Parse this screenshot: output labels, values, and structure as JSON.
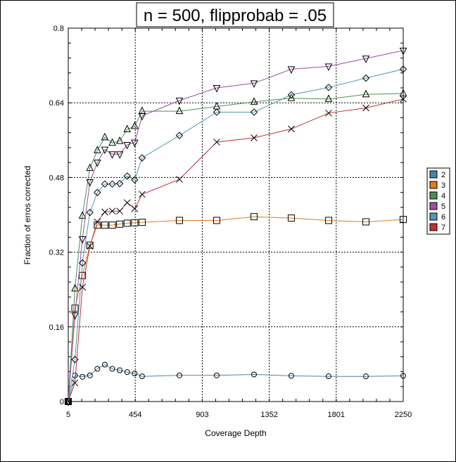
{
  "chart_data": {
    "type": "line",
    "title": "n = 500, flipprobab = .05",
    "xlabel": "Coverage Depth",
    "ylabel": "Fraction of erros corrected",
    "xlim": [
      5,
      2250
    ],
    "ylim": [
      0,
      0.8
    ],
    "x_ticks": [
      5,
      454,
      903,
      1352,
      1801,
      2250
    ],
    "x_tick_labels": [
      "5",
      "454",
      "903",
      "1352",
      "1801",
      "2250"
    ],
    "y_ticks": [
      0,
      0.16,
      0.32,
      0.48,
      0.64,
      0.8
    ],
    "y_tick_labels": [
      "0",
      "0.16",
      "0.32",
      "0.48",
      "0.64",
      "0.8"
    ],
    "grid": true,
    "legend_position": "right",
    "series": [
      {
        "name": "2",
        "color": "#4e84a8",
        "marker": "circle",
        "x": [
          5,
          50,
          100,
          150,
          200,
          250,
          300,
          350,
          400,
          450,
          500,
          750,
          1000,
          1250,
          1500,
          1750,
          2000,
          2250
        ],
        "y": [
          0,
          0.056,
          0.053,
          0.056,
          0.07,
          0.079,
          0.07,
          0.067,
          0.063,
          0.06,
          0.054,
          0.056,
          0.056,
          0.058,
          0.055,
          0.054,
          0.054,
          0.055
        ]
      },
      {
        "name": "3",
        "color": "#e07b20",
        "marker": "square",
        "x": [
          5,
          50,
          100,
          150,
          200,
          250,
          300,
          350,
          400,
          450,
          500,
          750,
          1000,
          1250,
          1500,
          1750,
          2000,
          2250
        ],
        "y": [
          0,
          0.2,
          0.27,
          0.335,
          0.378,
          0.378,
          0.378,
          0.38,
          0.382,
          0.383,
          0.384,
          0.388,
          0.388,
          0.396,
          0.393,
          0.388,
          0.385,
          0.39
        ]
      },
      {
        "name": "4",
        "color": "#4a8f55",
        "marker": "triangle-up",
        "x": [
          5,
          50,
          100,
          150,
          200,
          250,
          300,
          350,
          400,
          450,
          500,
          750,
          1000,
          1250,
          1500,
          1750,
          2000,
          2250
        ],
        "y": [
          0,
          0.242,
          0.398,
          0.5,
          0.538,
          0.566,
          0.554,
          0.558,
          0.583,
          0.59,
          0.622,
          0.622,
          0.632,
          0.642,
          0.65,
          0.648,
          0.658,
          0.66
        ]
      },
      {
        "name": "5",
        "color": "#9b4fa6",
        "marker": "triangle-down",
        "x": [
          5,
          50,
          100,
          150,
          200,
          250,
          300,
          350,
          400,
          450,
          500,
          750,
          1000,
          1250,
          1500,
          1750,
          2000,
          2250
        ],
        "y": [
          0,
          0.185,
          0.348,
          0.47,
          0.512,
          0.54,
          0.53,
          0.53,
          0.55,
          0.555,
          0.612,
          0.645,
          0.672,
          0.682,
          0.712,
          0.718,
          0.735,
          0.752
        ]
      },
      {
        "name": "6",
        "color": "#5596b0",
        "marker": "diamond",
        "x": [
          5,
          50,
          100,
          150,
          200,
          250,
          300,
          350,
          400,
          450,
          500,
          750,
          1000,
          1250,
          1500,
          1750,
          2000,
          2250
        ],
        "y": [
          0,
          0.09,
          0.297,
          0.405,
          0.448,
          0.466,
          0.466,
          0.467,
          0.483,
          0.475,
          0.522,
          0.57,
          0.62,
          0.62,
          0.657,
          0.673,
          0.693,
          0.712
        ]
      },
      {
        "name": "7",
        "color": "#c0303a",
        "marker": "x",
        "x": [
          5,
          50,
          100,
          150,
          200,
          250,
          300,
          350,
          400,
          450,
          500,
          750,
          1000,
          1250,
          1500,
          1750,
          2000,
          2250
        ],
        "y": [
          0,
          0.04,
          0.245,
          0.333,
          0.385,
          0.406,
          0.408,
          0.408,
          0.426,
          0.413,
          0.444,
          0.476,
          0.556,
          0.565,
          0.584,
          0.618,
          0.629,
          0.648
        ]
      }
    ]
  }
}
